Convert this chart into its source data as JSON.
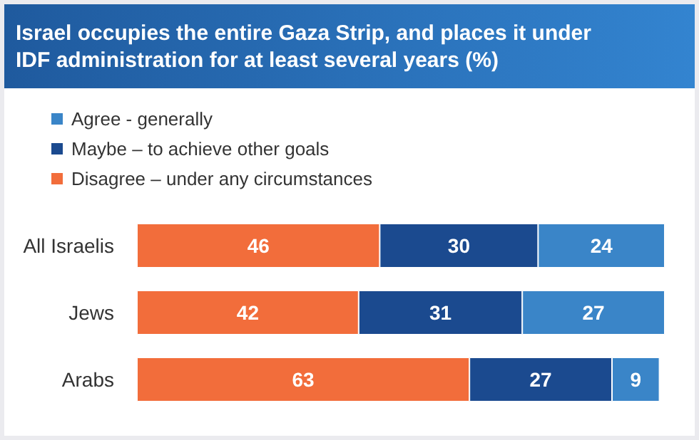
{
  "chart_data": {
    "type": "bar",
    "orientation": "horizontal",
    "stacked": true,
    "data_labels": true,
    "legend": "top left",
    "title": "Israel occupies the entire Gaza Strip, and  places it under IDF administration for at least several years (%)",
    "categories": [
      "All Israelis",
      "Jews",
      "Arabs"
    ],
    "series": [
      {
        "name": "Disagree – under any circumstances",
        "color": "#f26d3b",
        "values": [
          46,
          42,
          63
        ]
      },
      {
        "name": "Maybe – to achieve other goals",
        "color": "#1b4a8f",
        "values": [
          30,
          31,
          27
        ]
      },
      {
        "name": "Agree - generally",
        "color": "#3a85c8",
        "values": [
          24,
          27,
          9
        ]
      }
    ]
  }
}
